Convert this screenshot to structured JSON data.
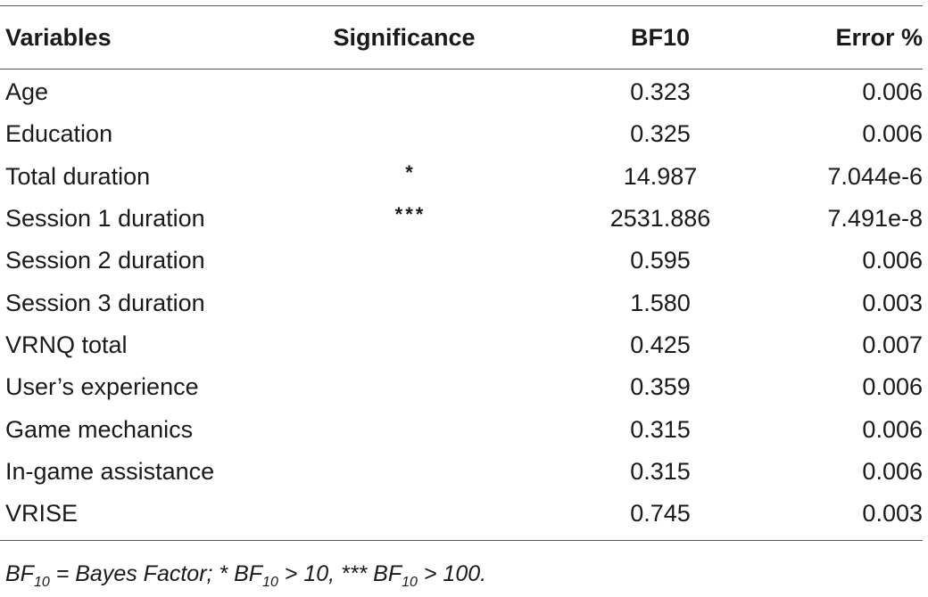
{
  "table": {
    "headers": [
      "Variables",
      "Significance",
      "BF10",
      "Error %"
    ],
    "rows": [
      {
        "variable": "Age",
        "significance": "",
        "bf10": "0.323",
        "error": "0.006"
      },
      {
        "variable": "Education",
        "significance": "",
        "bf10": "0.325",
        "error": "0.006"
      },
      {
        "variable": "Total duration",
        "significance": "*",
        "bf10": "14.987",
        "error": "7.044e-6"
      },
      {
        "variable": "Session 1 duration",
        "significance": "***",
        "bf10": "2531.886",
        "error": "7.491e-8"
      },
      {
        "variable": "Session 2 duration",
        "significance": "",
        "bf10": "0.595",
        "error": "0.006"
      },
      {
        "variable": "Session 3 duration",
        "significance": "",
        "bf10": "1.580",
        "error": "0.003"
      },
      {
        "variable": "VRNQ total",
        "significance": "",
        "bf10": "0.425",
        "error": "0.007"
      },
      {
        "variable": "User’s experience",
        "significance": "",
        "bf10": "0.359",
        "error": "0.006"
      },
      {
        "variable": "Game mechanics",
        "significance": "",
        "bf10": "0.315",
        "error": "0.006"
      },
      {
        "variable": "In-game assistance",
        "significance": "",
        "bf10": "0.315",
        "error": "0.006"
      },
      {
        "variable": "VRISE",
        "significance": "",
        "bf10": "0.745",
        "error": "0.003"
      }
    ]
  },
  "footnote": {
    "bf": "BF",
    "sub": "10",
    "part1": " = Bayes Factor; * ",
    "part2": " > 10, *** ",
    "part3": " > 100."
  }
}
